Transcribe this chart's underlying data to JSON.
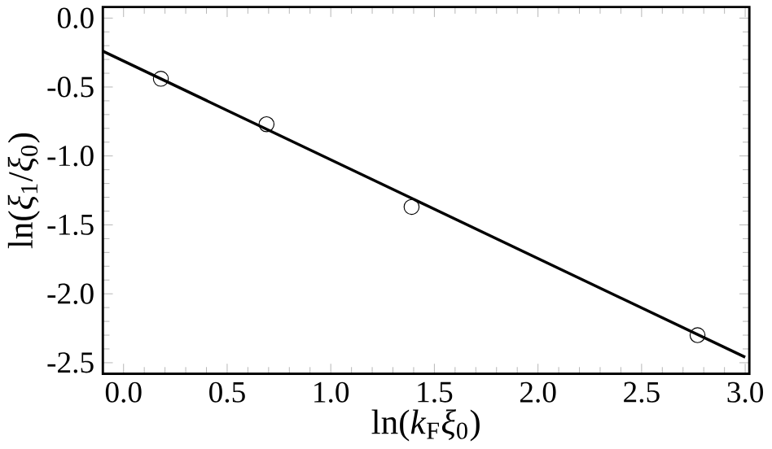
{
  "chart_data": {
    "type": "scatter",
    "xlabel": "ln(*k*$_{F}$*ξ*$_{0}$)",
    "ylabel": "ln(*ξ*$_{1}$/*ξ*$_{0}$)",
    "xlim": [
      -0.1,
      3.02
    ],
    "ylim": [
      -2.58,
      0.08
    ],
    "xticks": [
      {
        "value": 0,
        "label": "0.0"
      },
      {
        "value": 0.5,
        "label": "0.5"
      },
      {
        "value": 1,
        "label": "1.0"
      },
      {
        "value": 1.5,
        "label": "1.5"
      },
      {
        "value": 2,
        "label": "2.0"
      },
      {
        "value": 2.5,
        "label": "2.5"
      },
      {
        "value": 3,
        "label": "3.0"
      }
    ],
    "yticks": [
      {
        "value": 0,
        "label": "0.0"
      },
      {
        "value": -0.5,
        "label": "-0.5"
      },
      {
        "value": -1,
        "label": "-1.0"
      },
      {
        "value": -1.5,
        "label": "-1.5"
      },
      {
        "value": -2,
        "label": "-2.0"
      },
      {
        "value": -2.5,
        "label": "-2.5"
      }
    ],
    "series": [
      {
        "marker": "circle",
        "color": "#000000",
        "x": [
          0.18,
          0.69,
          1.39,
          2.77
        ],
        "values": [
          -0.44,
          -0.77,
          -1.37,
          -2.3
        ]
      },
      {
        "type": "line",
        "marker": "none",
        "color": "#000000",
        "x": [
          -0.1,
          3.0
        ],
        "values": [
          -0.24,
          -2.46
        ]
      }
    ],
    "grid": false
  }
}
